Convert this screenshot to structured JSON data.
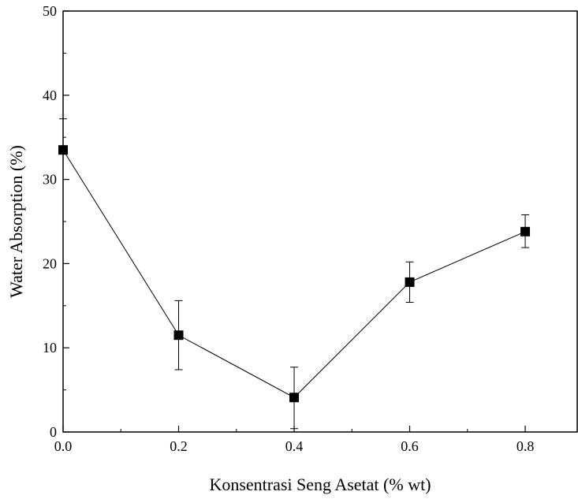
{
  "chart_data": {
    "type": "scatter",
    "xlabel": "Konsentrasi Seng Asetat (% wt)",
    "ylabel": "Water Absorption (%)",
    "xlim": [
      0,
      0.89
    ],
    "ylim": [
      0,
      50
    ],
    "x_ticks": [
      "0.0",
      "0.2",
      "0.4",
      "0.6",
      "0.8"
    ],
    "y_ticks": [
      "0",
      "10",
      "20",
      "30",
      "40",
      "50"
    ],
    "grid": false,
    "marker": "square",
    "connected": true,
    "points": [
      {
        "x": 0.0,
        "y": 33.5,
        "err_low": 33.5,
        "err_high": 37.2
      },
      {
        "x": 0.2,
        "y": 11.5,
        "err_low": 7.4,
        "err_high": 15.6
      },
      {
        "x": 0.4,
        "y": 4.1,
        "err_low": 0.4,
        "err_high": 7.7
      },
      {
        "x": 0.6,
        "y": 17.8,
        "err_low": 15.4,
        "err_high": 20.2
      },
      {
        "x": 0.8,
        "y": 23.8,
        "err_low": 21.9,
        "err_high": 25.8
      }
    ]
  }
}
